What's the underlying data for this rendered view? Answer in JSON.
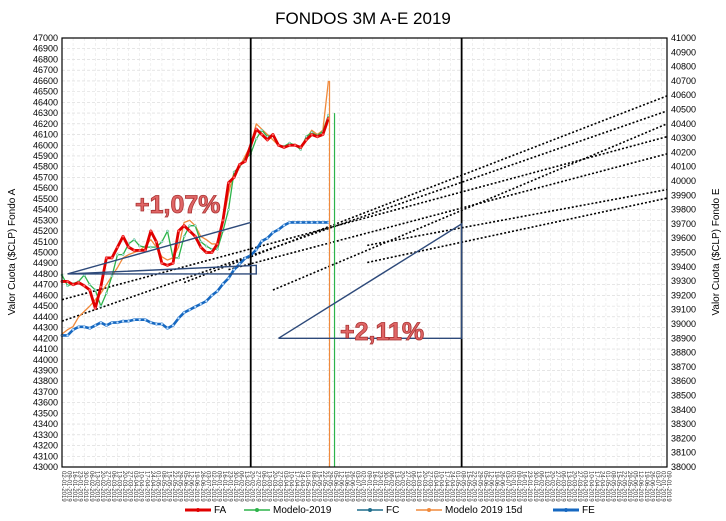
{
  "chart_data": {
    "type": "line",
    "title": "FONDOS 3M A-E 2019",
    "ylabel_left": "Valor Cuota ($CLP) Fondo A",
    "ylabel_right": "Valor Cuota ($CLP) Fondo E",
    "ylim_left": [
      43000,
      47000
    ],
    "ylim_right": [
      38000,
      41000
    ],
    "yticks_left_step": 100,
    "yticks_right_step": 100,
    "grid": true,
    "legend_position": "bottom",
    "x_tick_labels": [
      "02-01-2019",
      "09-01-2019",
      "16-01-2019",
      "23-01-2019",
      "30-01-2019",
      "06-02-2019",
      "13-02-2019",
      "20-02-2019",
      "27-02-2019",
      "06-03-2019",
      "13-03-2019",
      "20-03-2019",
      "27-03-2019",
      "03-04-2019",
      "10-04-2019",
      "17-04-2019",
      "24-04-2019",
      "01-05-2019",
      "08-05-2019",
      "15-05-2019",
      "22-05-2019",
      "29-05-2019",
      "05-06-2019",
      "12-06-2019",
      "19-06-2019",
      "26-06-2019",
      "03-07-2019"
    ],
    "series": [
      {
        "name": "FA",
        "axis": "left",
        "color": "#e00000",
        "values": [
          44730,
          44730,
          44700,
          44720,
          44690,
          44650,
          44480,
          44680,
          44950,
          44950,
          45050,
          45150,
          45050,
          45020,
          45020,
          45020,
          45200,
          45100,
          44900,
          44880,
          44900,
          45200,
          45250,
          45200,
          45150,
          45050,
          45000,
          45000,
          45080,
          45300,
          45650,
          45700,
          45820,
          45850,
          46000,
          46150,
          46100,
          46050,
          46100,
          46000,
          45980,
          46000,
          46000,
          45980,
          46050,
          46100,
          46080,
          46100,
          46250
        ]
      },
      {
        "name": "Modelo-2019",
        "axis": "left",
        "color": "#2db34a",
        "values": [
          44790,
          44690,
          44710,
          44730,
          44790,
          44700,
          44650,
          44500,
          44620,
          44780,
          44980,
          44980,
          45080,
          45120,
          45060,
          45050,
          45050,
          45050,
          45100,
          45200,
          44950,
          44950,
          45150,
          45250,
          45250,
          45100,
          45060,
          45030,
          45030,
          45200,
          45400,
          45750,
          45800,
          45870,
          45920,
          46060,
          46140,
          46080,
          46100,
          46000,
          45990,
          46020,
          46000,
          45960,
          46080,
          46120,
          46090,
          46130,
          46280
        ]
      },
      {
        "name": "FC",
        "axis": "left",
        "color": "#1f6d8c",
        "values": []
      },
      {
        "name": "Modelo 2019 15d",
        "axis": "left",
        "color": "#f08a3c",
        "values": [
          44240,
          44280,
          44310,
          44400,
          44450,
          44500,
          44560,
          44620,
          44700,
          44780,
          44860,
          44950,
          44980,
          45000,
          45020,
          45060,
          45120,
          45050,
          44960,
          44930,
          44950,
          45050,
          45280,
          45300,
          45250,
          45150,
          45120,
          45080,
          45080,
          45280,
          45550,
          45750,
          45800,
          45900,
          46000,
          46200,
          46150,
          46100,
          46050,
          46000,
          45980,
          46000,
          46010,
          45960,
          46060,
          46140,
          46100,
          46140,
          46600
        ]
      },
      {
        "name": "FE",
        "axis": "right",
        "color": "#1668c1",
        "values": [
          38920,
          38920,
          38960,
          38980,
          38980,
          38970,
          38990,
          39010,
          38990,
          39010,
          39010,
          39020,
          39020,
          39030,
          39030,
          39030,
          39010,
          39000,
          39000,
          38970,
          38990,
          39040,
          39080,
          39100,
          39120,
          39140,
          39160,
          39200,
          39230,
          39280,
          39320,
          39380,
          39420,
          39460,
          39480,
          39520,
          39580,
          39600,
          39640,
          39660,
          39690,
          39710,
          39710,
          39710,
          39710,
          39710,
          39710,
          39710,
          39710
        ]
      }
    ],
    "trendlines": [
      {
        "axis": "left",
        "from": [
          0,
          44360
        ],
        "to": [
          109,
          46320
        ]
      },
      {
        "axis": "left",
        "from": [
          0,
          44560
        ],
        "to": [
          109,
          46080
        ]
      },
      {
        "axis": "left",
        "from": [
          22,
          44720
        ],
        "to": [
          109,
          46460
        ]
      },
      {
        "axis": "left",
        "from": [
          30,
          44840
        ],
        "to": [
          109,
          45920
        ]
      },
      {
        "axis": "left",
        "from": [
          38,
          44650
        ],
        "to": [
          109,
          46200
        ]
      },
      {
        "axis": "right",
        "from": [
          55,
          39430
        ],
        "to": [
          109,
          39880
        ]
      },
      {
        "axis": "right",
        "from": [
          55,
          39550
        ],
        "to": [
          109,
          39940
        ]
      }
    ],
    "annotations": [
      {
        "text": "+1,07%"
      },
      {
        "text": "+2,11%"
      }
    ]
  },
  "legend": [
    {
      "label": "FA",
      "color": "#e00000"
    },
    {
      "label": "Modelo-2019",
      "color": "#2db34a"
    },
    {
      "label": "FC",
      "color": "#1f6d8c"
    },
    {
      "label": "Modelo 2019 15d",
      "color": "#f08a3c"
    },
    {
      "label": "FE",
      "color": "#1668c1"
    }
  ]
}
